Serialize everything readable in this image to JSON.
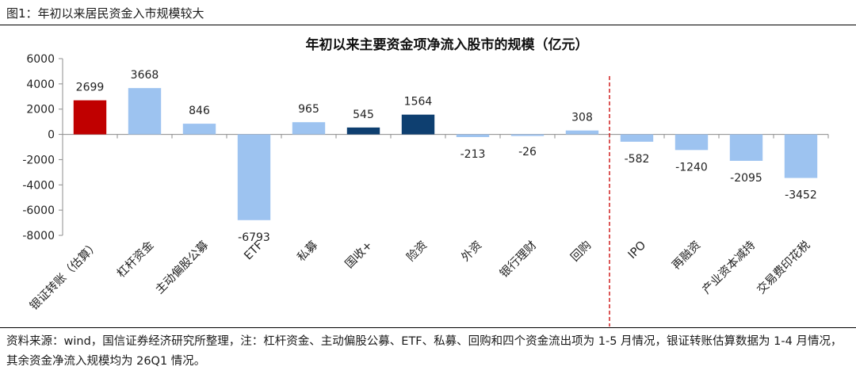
{
  "figure": {
    "label": "图1：年初以来居民资金入市规模较大",
    "note": "资料来源：wind，国信证券经济研究所整理，注：杠杆资金、主动偏股公募、ETF、私募、回购和四个资金流出项为 1-5 月情况，银证转账估算数据为 1-4 月情况，其余资金净流入规模均为 26Q1 情况。"
  },
  "chart_data": {
    "type": "bar",
    "title": "年初以来主要资金项净流入股市的规模（亿元）",
    "categories": [
      "银证转账（估算）",
      "杠杆资金",
      "主动偏股公募",
      "ETF",
      "私募",
      "国收+",
      "险资",
      "外资",
      "银行理财",
      "回购",
      "IPO",
      "再融资",
      "产业资本减持",
      "交易费印花税"
    ],
    "values": [
      2699,
      3668,
      846,
      -6793,
      965,
      545,
      1564,
      -213,
      -26,
      308,
      -582,
      -1240,
      -2095,
      -3452
    ],
    "value_labels": [
      "2699",
      "3668",
      "846",
      "-6793",
      "965",
      "545",
      "1564",
      "-213",
      "-26",
      "308",
      "-582",
      "-1240",
      "-2095",
      "-3452"
    ],
    "bar_colors": [
      "#c00000",
      "#9dc3f0",
      "#9dc3f0",
      "#9dc3f0",
      "#9dc3f0",
      "#0e3f70",
      "#0e3f70",
      "#9dc3f0",
      "#9dc3f0",
      "#9dc3f0",
      "#9dc3f0",
      "#9dc3f0",
      "#9dc3f0",
      "#9dc3f0"
    ],
    "ylim": [
      -8000,
      6000
    ],
    "yticks": [
      6000,
      4000,
      2000,
      0,
      -2000,
      -4000,
      -6000,
      -8000
    ],
    "ytick_labels": [
      "6000",
      "4000",
      "2000",
      "0",
      "-2000",
      "-4000",
      "-6000",
      "-8000"
    ],
    "divider_after_category": "回购",
    "divider_color": "#d02020",
    "grid": false,
    "legend": "none",
    "xlabel": "",
    "ylabel": ""
  }
}
